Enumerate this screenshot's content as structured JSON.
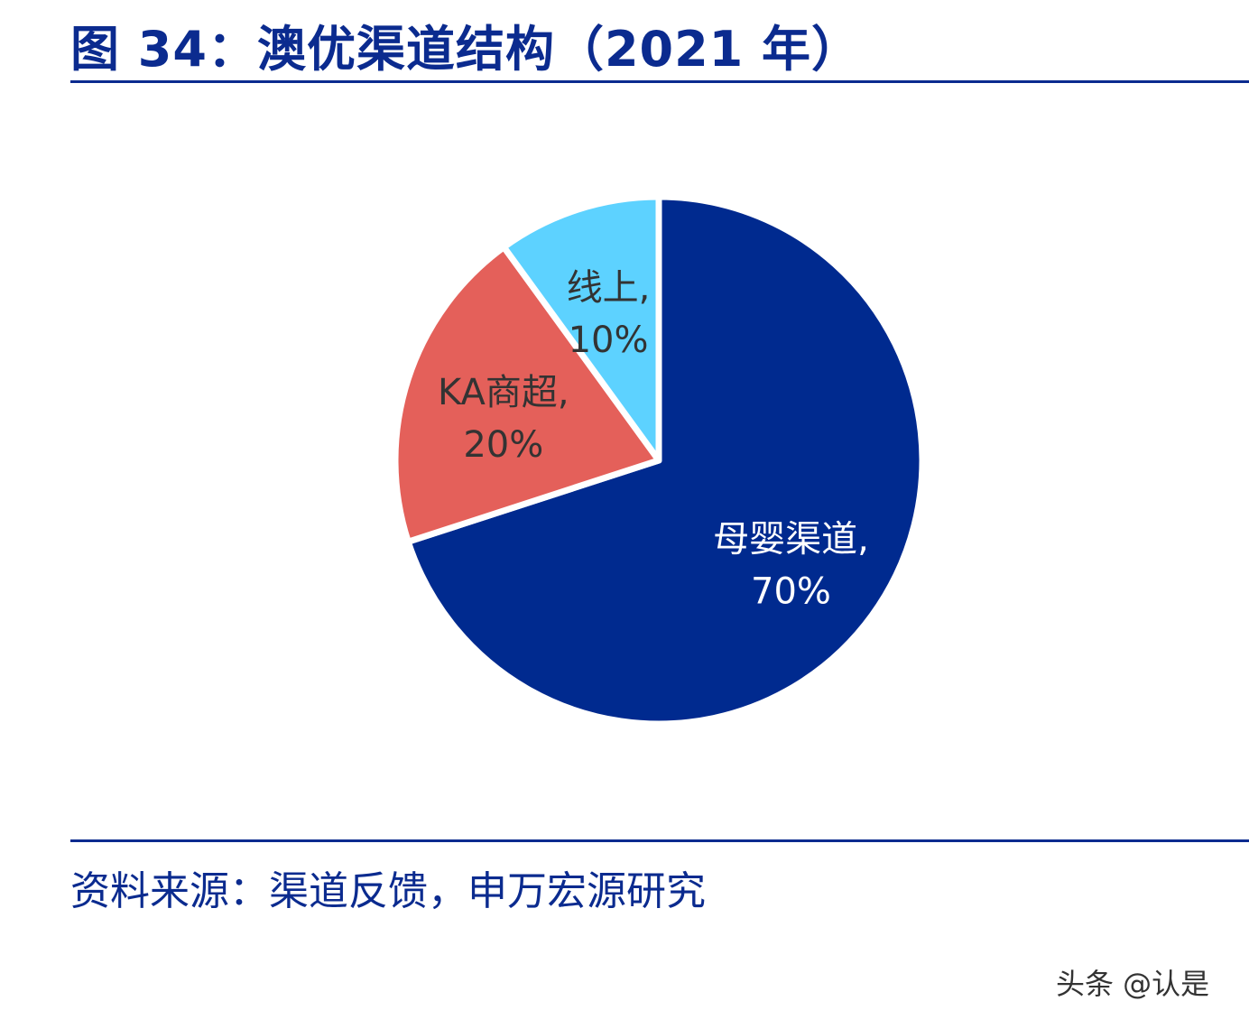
{
  "title": "图 34：澳优渠道结构（2021 年）",
  "source": "资料来源：渠道反馈，申万宏源研究",
  "watermark": "头条 @认是",
  "colors": {
    "accent": "#0b2b8f",
    "slice_baby": "#002a8f",
    "slice_ka": "#e4605a",
    "slice_online": "#5dd2ff"
  },
  "chart_data": {
    "type": "pie",
    "slices": [
      {
        "label": "母婴渠道,",
        "pct_text": "70%",
        "value": 70,
        "color": "#002a8f",
        "text_color": "#ffffff"
      },
      {
        "label": "KA商超,",
        "pct_text": "20%",
        "value": 20,
        "color": "#e4605a",
        "text_color": "#333333"
      },
      {
        "label": "线上,",
        "pct_text": "10%",
        "value": 10,
        "color": "#5dd2ff",
        "text_color": "#333333"
      }
    ]
  }
}
